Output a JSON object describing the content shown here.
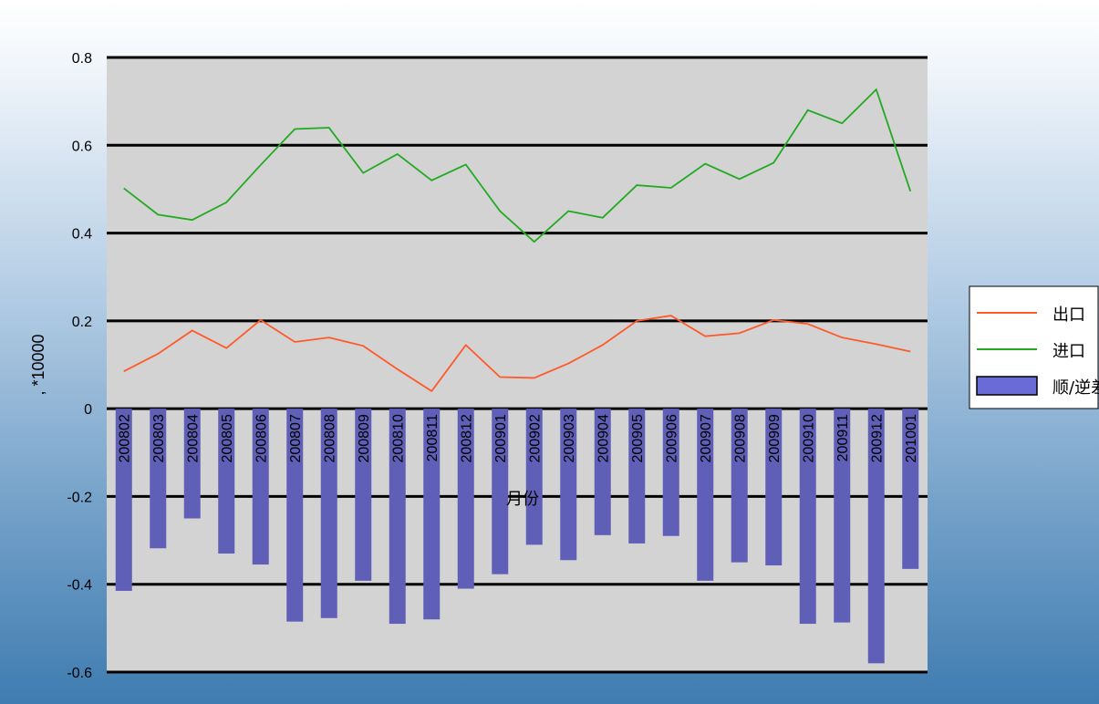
{
  "chart_data": {
    "type": "bar",
    "categories": [
      "200802",
      "200803",
      "200804",
      "200805",
      "200806",
      "200807",
      "200808",
      "200809",
      "200810",
      "200811",
      "200812",
      "200901",
      "200902",
      "200903",
      "200904",
      "200905",
      "200906",
      "200907",
      "200908",
      "200909",
      "200910",
      "200911",
      "200912",
      "201001"
    ],
    "series": [
      {
        "name": "出口",
        "type": "line",
        "color": "#ff5a2a",
        "values": [
          0.085,
          0.125,
          0.178,
          0.138,
          0.202,
          0.152,
          0.162,
          0.143,
          0.09,
          0.04,
          0.145,
          0.072,
          0.07,
          0.103,
          0.145,
          0.2,
          0.212,
          0.165,
          0.172,
          0.202,
          0.193,
          0.162,
          0.147,
          0.13
        ]
      },
      {
        "name": "进口",
        "type": "line",
        "color": "#22aa22",
        "values": [
          0.502,
          0.442,
          0.43,
          0.47,
          0.555,
          0.637,
          0.64,
          0.537,
          0.58,
          0.52,
          0.556,
          0.45,
          0.38,
          0.45,
          0.435,
          0.509,
          0.503,
          0.558,
          0.523,
          0.56,
          0.68,
          0.65,
          0.727,
          0.495
        ]
      },
      {
        "name": "顺/逆差",
        "type": "bar",
        "color": "#5f5fb8",
        "values": [
          -0.415,
          -0.318,
          -0.25,
          -0.33,
          -0.355,
          -0.485,
          -0.477,
          -0.392,
          -0.49,
          -0.48,
          -0.41,
          -0.377,
          -0.31,
          -0.345,
          -0.288,
          -0.307,
          -0.29,
          -0.392,
          -0.35,
          -0.357,
          -0.49,
          -0.487,
          -0.58,
          -0.365
        ]
      }
    ],
    "xlabel": "月份",
    "ylabel": ", *10000",
    "ylim": [
      -0.6,
      0.8
    ],
    "yticks": [
      "-0.6",
      "-0.4",
      "-0.2",
      "0",
      "0.2",
      "0.4",
      "0.6",
      "0.8"
    ],
    "grid": true,
    "legend_position": "right",
    "plot_background": "#d3d3d3"
  }
}
